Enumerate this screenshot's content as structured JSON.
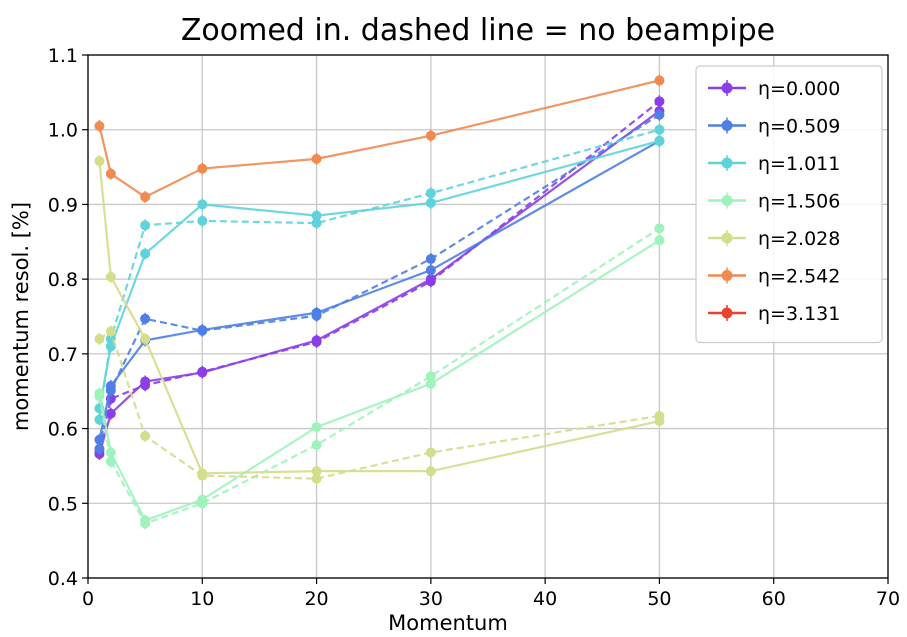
{
  "chart_data": {
    "type": "line",
    "title": "Zoomed in. dashed line = no beampipe",
    "xlabel": "Momentum",
    "ylabel": "momentum resol. [%]",
    "xlim": [
      0,
      70
    ],
    "ylim": [
      0.4,
      1.1
    ],
    "xticks": [
      0,
      10,
      20,
      30,
      40,
      50,
      60,
      70
    ],
    "yticks": [
      0.4,
      0.5,
      0.6,
      0.7,
      0.8,
      0.9,
      1.0,
      1.1
    ],
    "xtick_labels": [
      "0",
      "10",
      "20",
      "30",
      "40",
      "50",
      "60",
      "70"
    ],
    "ytick_labels": [
      "0.4",
      "0.5",
      "0.6",
      "0.7",
      "0.8",
      "0.9",
      "1.0",
      "1.1"
    ],
    "grid": true,
    "legend_position": "top-right",
    "x": [
      1,
      2,
      5,
      10,
      20,
      30,
      50
    ],
    "series": [
      {
        "name": "η=0.000",
        "color": "#8a3ee8",
        "solid": [
          0.566,
          0.62,
          0.663,
          0.675,
          0.718,
          0.8,
          1.025
        ],
        "dashed": [
          0.57,
          0.64,
          0.658,
          0.676,
          0.716,
          0.797,
          1.038
        ]
      },
      {
        "name": "η=0.509",
        "color": "#4e7fe6",
        "solid": [
          0.585,
          0.657,
          0.718,
          0.732,
          0.755,
          0.812,
          0.985
        ],
        "dashed": [
          0.573,
          0.651,
          0.747,
          0.731,
          0.751,
          0.827,
          1.02
        ]
      },
      {
        "name": "η=1.011",
        "color": "#5fd3dc",
        "solid": [
          0.627,
          0.71,
          0.834,
          0.9,
          0.885,
          0.902,
          0.985
        ],
        "dashed": [
          0.612,
          0.72,
          0.872,
          0.878,
          0.875,
          0.915,
          1.0
        ]
      },
      {
        "name": "η=1.506",
        "color": "#9ef3bd",
        "solid": [
          0.647,
          0.568,
          0.477,
          0.505,
          0.602,
          0.66,
          0.852
        ],
        "dashed": [
          0.643,
          0.556,
          0.473,
          0.5,
          0.578,
          0.67,
          0.868
        ]
      },
      {
        "name": "η=2.028",
        "color": "#d4dd8c",
        "solid": [
          0.958,
          0.803,
          0.72,
          0.54,
          0.543,
          0.543,
          0.61
        ],
        "dashed": [
          0.72,
          0.73,
          0.59,
          0.537,
          0.533,
          0.568,
          0.617
        ]
      },
      {
        "name": "η=2.542",
        "color": "#f08a50",
        "solid": [
          1.005,
          0.941,
          0.91,
          0.948,
          0.961,
          0.992,
          1.066
        ],
        "dashed": []
      },
      {
        "name": "η=3.131",
        "color": "#e8432f",
        "solid": [],
        "dashed": []
      }
    ]
  }
}
